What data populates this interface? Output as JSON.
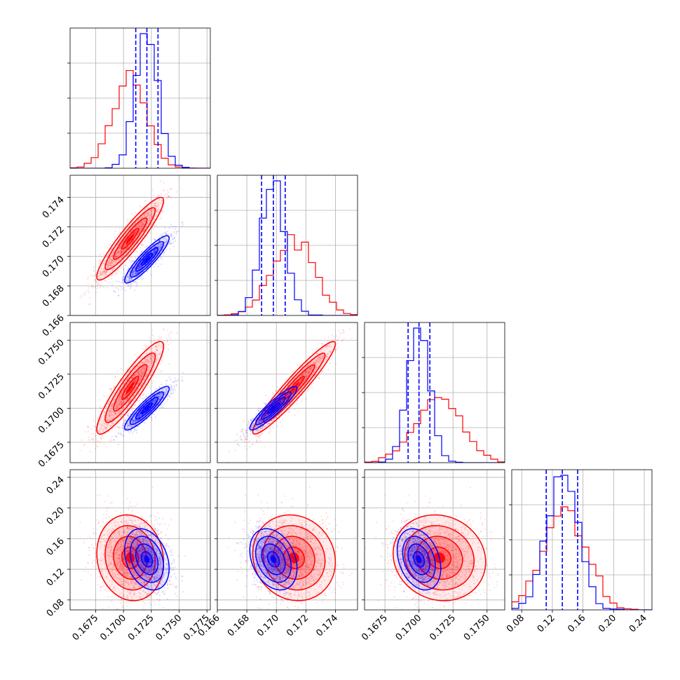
{
  "chart_data": {
    "type": "corner",
    "grid": true,
    "n_params": 4,
    "param_ranges": [
      [
        0.1652,
        0.1778
      ],
      [
        0.166,
        0.1755
      ],
      [
        0.166,
        0.1763
      ],
      [
        0.067,
        0.25
      ]
    ],
    "ticks": [
      {
        "values": [
          0.1675,
          0.17,
          0.1725,
          0.175,
          0.1775
        ],
        "labels": [
          "0.1675",
          "0.1700",
          "0.1725",
          "0.1750",
          "0.1775"
        ]
      },
      {
        "values": [
          0.166,
          0.168,
          0.17,
          0.172,
          0.174
        ],
        "labels": [
          "0.166",
          "0.168",
          "0.170",
          "0.172",
          "0.174"
        ]
      },
      {
        "values": [
          0.1675,
          0.17,
          0.1725,
          0.175
        ],
        "labels": [
          "0.1675",
          "0.1700",
          "0.1725",
          "0.1750"
        ]
      },
      {
        "values": [
          0.08,
          0.12,
          0.16,
          0.2,
          0.24
        ],
        "labels": [
          "0.08",
          "0.12",
          "0.16",
          "0.20",
          "0.24"
        ]
      }
    ],
    "series": [
      {
        "color": "#ff0000",
        "mean": [
          0.1706,
          0.1712,
          0.1715,
          0.135
        ],
        "std": [
          0.0015,
          0.0014,
          0.0017,
          0.028
        ],
        "corr": [
          [
            1,
            0.92,
            0.9,
            -0.1
          ],
          [
            0.92,
            1,
            0.95,
            -0.1
          ],
          [
            0.9,
            0.95,
            1,
            -0.1
          ],
          [
            -0.1,
            -0.1,
            -0.1,
            1
          ]
        ],
        "quantiles": null
      },
      {
        "color": "#0000ff",
        "mean": [
          0.1721,
          0.1698,
          0.17,
          0.133
        ],
        "std": [
          0.001,
          0.0008,
          0.0008,
          0.02
        ],
        "corr": [
          [
            1,
            0.9,
            0.9,
            -0.3
          ],
          [
            0.9,
            1,
            0.92,
            -0.3
          ],
          [
            0.9,
            0.92,
            1,
            -0.3
          ],
          [
            -0.3,
            -0.3,
            -0.3,
            1
          ]
        ],
        "quantiles": [
          [
            0.1711,
            0.1721,
            0.1731
          ],
          [
            0.169,
            0.1698,
            0.1706
          ],
          [
            0.1692,
            0.17,
            0.1708
          ],
          [
            0.112,
            0.133,
            0.153
          ]
        ]
      }
    ]
  }
}
